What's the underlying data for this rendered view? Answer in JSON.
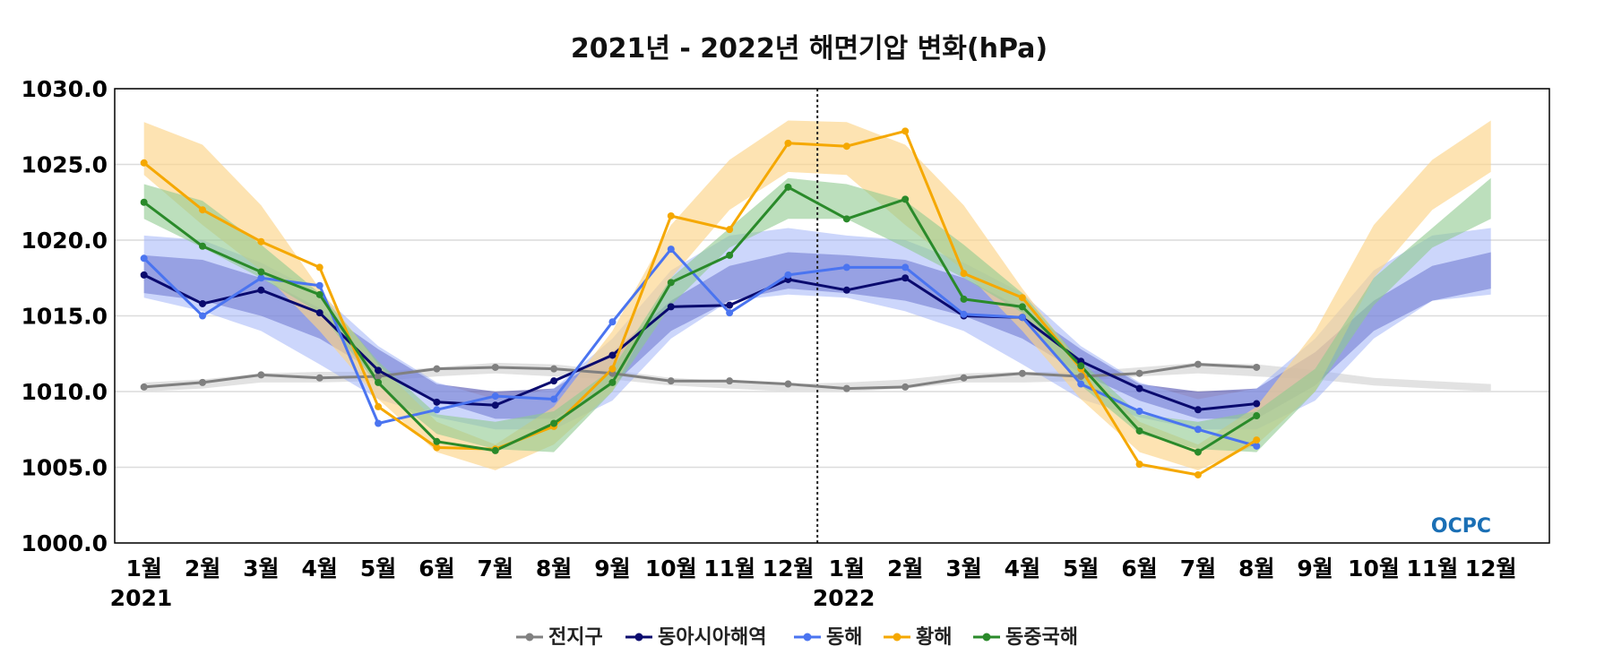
{
  "chart_data": {
    "type": "line",
    "title": "2021년 - 2022년 해면기압 변화(hPa)",
    "xlabel": "",
    "ylabel": "",
    "ylim": [
      1000,
      1030
    ],
    "yticks": [
      1000,
      1005,
      1010,
      1015,
      1020,
      1025,
      1030
    ],
    "ytick_labels": [
      "1000.0",
      "1005.0",
      "1010.0",
      "1015.0",
      "1020.0",
      "1025.0",
      "1030.0"
    ],
    "categories": [
      "1월",
      "2월",
      "3월",
      "4월",
      "5월",
      "6월",
      "7월",
      "8월",
      "9월",
      "10월",
      "11월",
      "12월",
      "1월",
      "2월",
      "3월",
      "4월",
      "5월",
      "6월",
      "7월",
      "8월",
      "9월",
      "10월",
      "11월",
      "12월"
    ],
    "year_labels": [
      {
        "index": 0,
        "label": "2021"
      },
      {
        "index": 12,
        "label": "2022"
      }
    ],
    "divider_after_index": 11,
    "grid": "horizontal",
    "legend_position": "bottom-center",
    "series": [
      {
        "name": "전지구",
        "color": "#808080",
        "values": [
          1010.3,
          1010.6,
          1011.1,
          1010.9,
          1011.0,
          1011.5,
          1011.6,
          1011.5,
          1011.2,
          1010.7,
          1010.7,
          1010.5,
          1010.2,
          1010.3,
          1010.9,
          1011.2,
          1011.0,
          1011.2,
          1011.8,
          1011.6,
          null,
          null,
          null,
          null
        ],
        "band": {
          "color": "#e2e2e2",
          "opacity": 1,
          "lower": [
            1010.0,
            1010.2,
            1010.6,
            1010.6,
            1010.7,
            1011.0,
            1011.2,
            1011.0,
            1010.8,
            1010.4,
            1010.2,
            1010.0,
            1010.0,
            1010.2,
            1010.6,
            1010.6,
            1010.7,
            1011.0,
            1011.2,
            1011.0,
            1010.8,
            1010.4,
            1010.2,
            1010.0
          ],
          "upper": [
            1010.6,
            1010.8,
            1011.2,
            1011.3,
            1011.3,
            1011.6,
            1011.9,
            1011.8,
            1011.4,
            1010.9,
            1010.7,
            1010.5,
            1010.6,
            1010.8,
            1011.2,
            1011.3,
            1011.3,
            1011.6,
            1011.9,
            1011.8,
            1011.4,
            1010.9,
            1010.7,
            1010.5
          ]
        }
      },
      {
        "name": "동아시아해역",
        "color": "#0a0a6e",
        "values": [
          1017.7,
          1015.8,
          1016.7,
          1015.2,
          1011.4,
          1009.3,
          1009.1,
          1010.7,
          1012.4,
          1015.6,
          1015.7,
          1017.4,
          1016.7,
          1017.5,
          1015.0,
          1014.9,
          1012.0,
          1010.2,
          1008.8,
          1009.2,
          null,
          null,
          null,
          null
        ],
        "band": {
          "color": "#3c3ca8",
          "opacity": 0.55,
          "lower": [
            1016.5,
            1016.0,
            1015.0,
            1013.5,
            1011.2,
            1009.4,
            1008.2,
            1008.2,
            1010.4,
            1014.0,
            1016.0,
            1016.8,
            1016.5,
            1016.0,
            1015.0,
            1013.5,
            1011.2,
            1009.4,
            1008.2,
            1008.2,
            1010.4,
            1014.0,
            1016.0,
            1016.8
          ],
          "upper": [
            1019.0,
            1018.7,
            1017.5,
            1015.5,
            1012.8,
            1010.5,
            1010.0,
            1010.2,
            1012.6,
            1016.0,
            1018.3,
            1019.2,
            1019.0,
            1018.7,
            1017.5,
            1015.5,
            1012.8,
            1010.5,
            1010.0,
            1010.2,
            1012.6,
            1016.0,
            1018.3,
            1019.2
          ]
        }
      },
      {
        "name": "동해",
        "color": "#4a74f0",
        "values": [
          1018.8,
          1015.0,
          1017.5,
          1017.0,
          1007.9,
          1008.8,
          1009.7,
          1009.5,
          1014.6,
          1019.4,
          1015.2,
          1017.7,
          1018.2,
          1018.2,
          1015.1,
          1014.9,
          1010.5,
          1008.7,
          1007.5,
          1006.4,
          null,
          null,
          null,
          null
        ],
        "band": {
          "color": "#99adf8",
          "opacity": 0.5,
          "lower": [
            1016.2,
            1015.3,
            1014.0,
            1011.8,
            1009.5,
            1008.3,
            1007.5,
            1007.5,
            1009.4,
            1013.5,
            1016.0,
            1016.4,
            1016.2,
            1015.3,
            1014.0,
            1011.8,
            1009.5,
            1008.3,
            1007.5,
            1007.5,
            1009.4,
            1013.5,
            1016.0,
            1016.4
          ],
          "upper": [
            1020.3,
            1020.0,
            1018.5,
            1016.5,
            1013.0,
            1010.6,
            1009.5,
            1010.2,
            1013.5,
            1018.0,
            1020.3,
            1020.8,
            1020.3,
            1020.0,
            1018.5,
            1016.5,
            1013.0,
            1010.6,
            1009.5,
            1010.2,
            1013.5,
            1018.0,
            1020.3,
            1020.8
          ]
        }
      },
      {
        "name": "황해",
        "color": "#f5a800",
        "values": [
          1025.1,
          1022.0,
          1019.9,
          1018.2,
          1009.0,
          1006.3,
          1006.2,
          1007.7,
          1011.5,
          1021.6,
          1020.7,
          1026.4,
          1026.2,
          1027.2,
          1017.8,
          1016.2,
          1011.5,
          1005.2,
          1004.5,
          1006.8,
          null,
          null,
          null,
          null
        ],
        "band": {
          "color": "#fcd488",
          "opacity": 0.65,
          "lower": [
            1024.3,
            1021.0,
            1018.0,
            1014.0,
            1009.5,
            1006.0,
            1004.8,
            1006.5,
            1010.0,
            1017.5,
            1022.0,
            1024.5,
            1024.3,
            1021.0,
            1018.0,
            1014.0,
            1009.5,
            1006.0,
            1004.8,
            1006.5,
            1010.0,
            1017.5,
            1022.0,
            1024.5
          ],
          "upper": [
            1027.8,
            1026.3,
            1022.3,
            1016.8,
            1011.8,
            1008.0,
            1006.5,
            1009.0,
            1014.0,
            1021.0,
            1025.3,
            1027.9,
            1027.8,
            1026.3,
            1022.3,
            1016.8,
            1011.8,
            1008.0,
            1006.5,
            1009.0,
            1014.0,
            1021.0,
            1025.3,
            1027.9
          ]
        }
      },
      {
        "name": "동중국해",
        "color": "#2a8a2a",
        "values": [
          1022.5,
          1019.6,
          1017.9,
          1016.4,
          1010.6,
          1006.7,
          1006.1,
          1007.9,
          1010.6,
          1017.2,
          1019.0,
          1023.5,
          1021.4,
          1022.7,
          1016.1,
          1015.6,
          1011.7,
          1007.4,
          1006.0,
          1008.4,
          null,
          null,
          null,
          null
        ],
        "band": {
          "color": "#8fc98f",
          "opacity": 0.6,
          "lower": [
            1021.4,
            1019.5,
            1017.5,
            1015.2,
            1010.4,
            1007.2,
            1006.2,
            1006.0,
            1010.0,
            1015.7,
            1019.5,
            1021.4,
            1021.4,
            1019.5,
            1017.5,
            1015.2,
            1010.4,
            1007.2,
            1006.2,
            1006.0,
            1010.0,
            1015.7,
            1019.5,
            1021.4
          ],
          "upper": [
            1023.7,
            1022.6,
            1019.7,
            1016.5,
            1012.0,
            1008.5,
            1008.0,
            1008.7,
            1011.5,
            1017.5,
            1020.8,
            1024.1,
            1023.7,
            1022.6,
            1019.7,
            1016.5,
            1012.0,
            1008.5,
            1008.0,
            1008.7,
            1011.5,
            1017.5,
            1020.8,
            1024.1
          ]
        }
      }
    ]
  },
  "logo": {
    "text": "OCPC"
  }
}
